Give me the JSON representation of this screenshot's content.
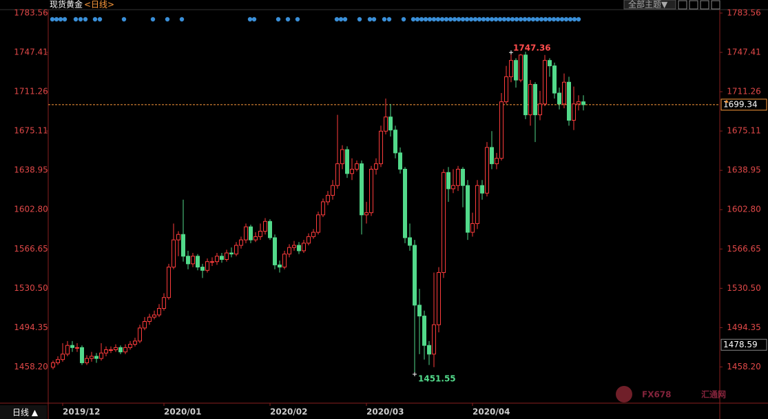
{
  "header": {
    "title": "现货黄金",
    "period": "<日线>",
    "theme_button": "全部主题▼",
    "period_button": "日线 ▲"
  },
  "watermark": {
    "brand": "FX678",
    "site": "汇通网"
  },
  "chart_data": {
    "type": "candlestick",
    "open": [
      1458,
      1462,
      1465,
      1470,
      1478,
      1476,
      1476,
      1462,
      1466,
      1468,
      1466,
      1471,
      1474,
      1474,
      1476,
      1472,
      1476,
      1479,
      1482,
      1494,
      1500,
      1504,
      1506,
      1512,
      1522,
      1550,
      1575,
      1580,
      1560,
      1553,
      1560,
      1550,
      1547,
      1555,
      1555,
      1560,
      1557,
      1563,
      1562,
      1570,
      1575,
      1587,
      1575,
      1578,
      1583,
      1592,
      1577,
      1552,
      1550,
      1562,
      1568,
      1570,
      1565,
      1572,
      1578,
      1582,
      1598,
      1610,
      1616,
      1625,
      1645,
      1658,
      1636,
      1640,
      1645,
      1598,
      1600,
      1640,
      1645,
      1675,
      1688,
      1676,
      1655,
      1640,
      1577,
      1570,
      1515,
      1505,
      1478,
      1470,
      1497,
      1545,
      1637,
      1622,
      1625,
      1640,
      1625,
      1582,
      1590,
      1625,
      1618,
      1660,
      1645,
      1650,
      1702,
      1725,
      1740,
      1722,
      1745,
      1690,
      1718,
      1690,
      1700,
      1740,
      1735,
      1710,
      1700,
      1720,
      1685,
      1700,
      1702
    ],
    "high": [
      1464,
      1468,
      1480,
      1482,
      1482,
      1480,
      1478,
      1469,
      1472,
      1471,
      1480,
      1477,
      1477,
      1479,
      1478,
      1479,
      1482,
      1485,
      1497,
      1504,
      1507,
      1510,
      1516,
      1526,
      1553,
      1590,
      1583,
      1612,
      1565,
      1563,
      1562,
      1553,
      1558,
      1559,
      1563,
      1563,
      1566,
      1568,
      1573,
      1578,
      1590,
      1589,
      1582,
      1590,
      1595,
      1594,
      1580,
      1556,
      1565,
      1571,
      1574,
      1573,
      1575,
      1581,
      1585,
      1601,
      1613,
      1620,
      1630,
      1690,
      1662,
      1661,
      1650,
      1648,
      1648,
      1610,
      1643,
      1650,
      1680,
      1705,
      1700,
      1680,
      1660,
      1642,
      1590,
      1575,
      1530,
      1510,
      1482,
      1545,
      1550,
      1640,
      1642,
      1640,
      1643,
      1642,
      1630,
      1600,
      1630,
      1630,
      1665,
      1675,
      1655,
      1710,
      1735,
      1747.36,
      1742,
      1746,
      1748,
      1722,
      1720,
      1712,
      1745,
      1742,
      1738,
      1715,
      1728,
      1725,
      1716,
      1708,
      1708
    ],
    "low": [
      1456,
      1460,
      1463,
      1468,
      1472,
      1472,
      1460,
      1460,
      1463,
      1462,
      1464,
      1468,
      1471,
      1472,
      1470,
      1470,
      1474,
      1477,
      1480,
      1492,
      1497,
      1502,
      1504,
      1510,
      1520,
      1548,
      1560,
      1555,
      1548,
      1550,
      1547,
      1540,
      1545,
      1551,
      1552,
      1554,
      1555,
      1559,
      1560,
      1567,
      1572,
      1572,
      1573,
      1575,
      1580,
      1575,
      1548,
      1545,
      1548,
      1559,
      1565,
      1562,
      1563,
      1570,
      1576,
      1580,
      1596,
      1607,
      1612,
      1622,
      1640,
      1632,
      1630,
      1638,
      1580,
      1590,
      1597,
      1635,
      1642,
      1672,
      1670,
      1650,
      1636,
      1572,
      1565,
      1451.55,
      1470,
      1465,
      1460,
      1458,
      1490,
      1540,
      1610,
      1618,
      1620,
      1605,
      1575,
      1578,
      1585,
      1612,
      1615,
      1640,
      1640,
      1648,
      1700,
      1720,
      1715,
      1720,
      1686,
      1680,
      1665,
      1685,
      1698,
      1725,
      1705,
      1695,
      1696,
      1680,
      1676,
      1694,
      1694
    ],
    "close": [
      1462,
      1465,
      1470,
      1478,
      1476,
      1476,
      1462,
      1466,
      1468,
      1466,
      1471,
      1474,
      1474,
      1476,
      1472,
      1476,
      1479,
      1482,
      1494,
      1500,
      1504,
      1506,
      1512,
      1522,
      1550,
      1575,
      1580,
      1560,
      1553,
      1560,
      1550,
      1547,
      1555,
      1555,
      1560,
      1557,
      1563,
      1562,
      1570,
      1575,
      1587,
      1575,
      1578,
      1583,
      1592,
      1577,
      1552,
      1550,
      1562,
      1568,
      1570,
      1565,
      1572,
      1578,
      1582,
      1598,
      1610,
      1616,
      1625,
      1645,
      1658,
      1636,
      1640,
      1645,
      1598,
      1600,
      1640,
      1645,
      1675,
      1688,
      1676,
      1655,
      1640,
      1577,
      1570,
      1515,
      1505,
      1478,
      1470,
      1497,
      1545,
      1637,
      1622,
      1625,
      1640,
      1625,
      1582,
      1590,
      1625,
      1618,
      1660,
      1645,
      1650,
      1702,
      1725,
      1740,
      1722,
      1745,
      1690,
      1718,
      1690,
      1700,
      1740,
      1735,
      1710,
      1700,
      1720,
      1685,
      1700,
      1702,
      1699.34
    ],
    "up_color": "#ff3c3c",
    "down_color": "#52d98a",
    "ylim": [
      1424.9,
      1786.7
    ],
    "yticks": [
      {
        "value": 1458.2,
        "label": "1458.20"
      },
      1494.35,
      {
        "value": 1530.5,
        "label": "1530.50"
      },
      1566.65,
      {
        "value": 1602.8,
        "label": "1602.80"
      },
      1638.95,
      1675.11,
      1711.26,
      1747.41,
      1783.56
    ],
    "xticks": [
      {
        "value": 2,
        "label": "2019/12"
      },
      {
        "value": 23,
        "label": "2020/01"
      },
      {
        "value": 45,
        "label": "2020/02"
      },
      {
        "value": 65,
        "label": "2020/03"
      },
      {
        "value": 87,
        "label": "2020/04"
      }
    ],
    "max_index": 95,
    "min_index": 75,
    "reference_price": 1478.59,
    "last_price_line": true
  }
}
